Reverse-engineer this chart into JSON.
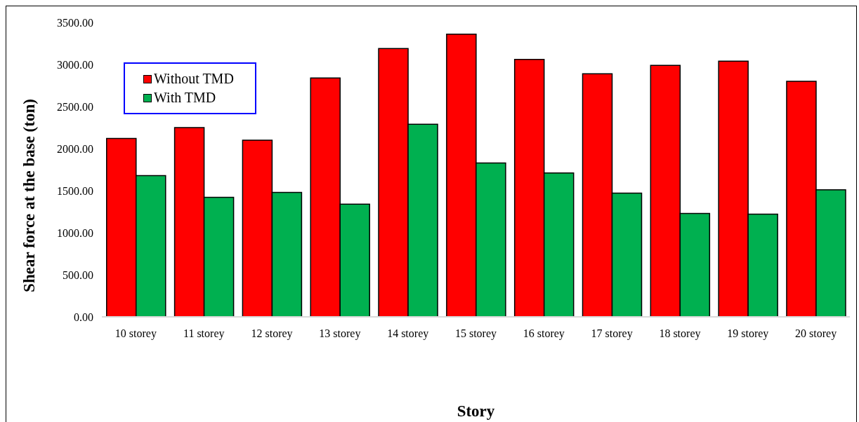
{
  "chart_data": {
    "type": "bar",
    "xlabel": "Story",
    "ylabel": "Shear force at the base (ton)",
    "categories": [
      "10 storey",
      "11 storey",
      "12 storey",
      "13 storey",
      "14 storey",
      "15 storey",
      "16 storey",
      "17 storey",
      "18 storey",
      "19 storey",
      "20 storey"
    ],
    "series": [
      {
        "name": "Without TMD",
        "color": "#ff0000",
        "values": [
          2120,
          2250,
          2100,
          2840,
          3190,
          3360,
          3060,
          2890,
          2990,
          3040,
          2800
        ]
      },
      {
        "name": "With TMD",
        "color": "#00b050",
        "values": [
          1680,
          1420,
          1480,
          1340,
          2290,
          1830,
          1710,
          1470,
          1230,
          1220,
          1510
        ]
      }
    ],
    "ylim": [
      0,
      3500
    ],
    "yticks": [
      {
        "value": 0,
        "label": "0.00"
      },
      {
        "value": 500,
        "label": "500.00"
      },
      {
        "value": 1000,
        "label": "1000.00"
      },
      {
        "value": 1500,
        "label": "1500.00"
      },
      {
        "value": 2000,
        "label": "2000.00"
      },
      {
        "value": 2500,
        "label": "2500.00"
      },
      {
        "value": 3000,
        "label": "3000.00"
      },
      {
        "value": 3500,
        "label": "3500.00"
      }
    ],
    "legend": "top left"
  }
}
